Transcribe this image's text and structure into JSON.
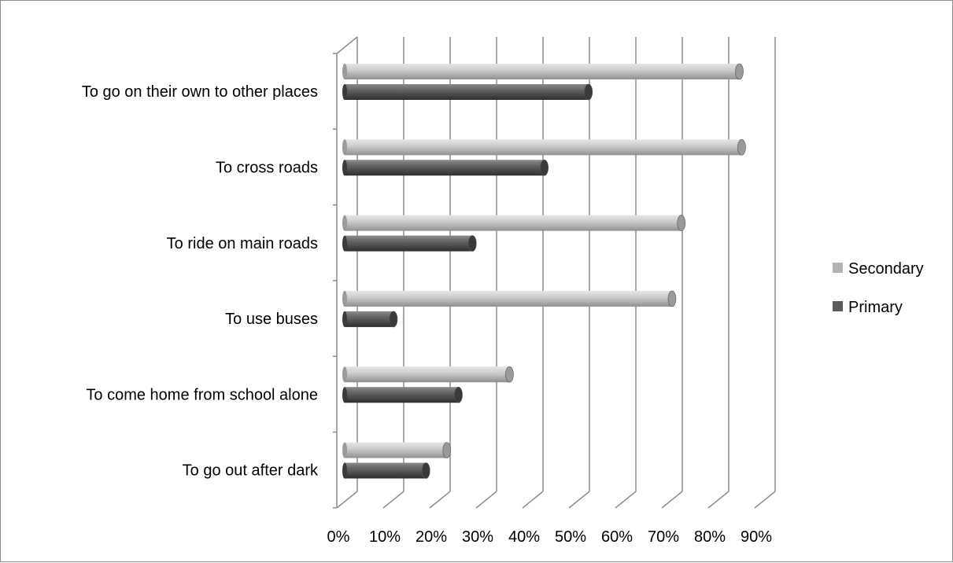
{
  "chart_data": {
    "type": "bar",
    "orientation": "horizontal",
    "three_d": true,
    "categories": [
      "To go on their own to other places",
      "To cross roads",
      "To ride on main roads",
      "To use buses",
      "To come home from school alone",
      "To go out after dark"
    ],
    "series": [
      {
        "name": "Secondary",
        "color": "#b3b3b3",
        "values": [
          0.85,
          0.855,
          0.725,
          0.705,
          0.355,
          0.22
        ]
      },
      {
        "name": "Primary",
        "color": "#5a5a5a",
        "values": [
          0.525,
          0.43,
          0.275,
          0.105,
          0.245,
          0.175
        ]
      }
    ],
    "x_axis": {
      "ticks": [
        "0%",
        "10%",
        "20%",
        "30%",
        "40%",
        "50%",
        "60%",
        "70%",
        "80%",
        "90%"
      ],
      "xlim": [
        0,
        0.9
      ]
    },
    "grid": true,
    "legend_position": "right",
    "legend": [
      "Secondary",
      "Primary"
    ]
  }
}
